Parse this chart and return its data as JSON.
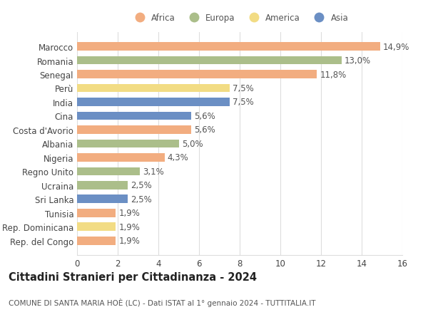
{
  "categories": [
    "Marocco",
    "Romania",
    "Senegal",
    "Perù",
    "India",
    "Cina",
    "Costa d'Avorio",
    "Albania",
    "Nigeria",
    "Regno Unito",
    "Ucraina",
    "Sri Lanka",
    "Tunisia",
    "Rep. Dominicana",
    "Rep. del Congo"
  ],
  "values": [
    14.9,
    13.0,
    11.8,
    7.5,
    7.5,
    5.6,
    5.6,
    5.0,
    4.3,
    3.1,
    2.5,
    2.5,
    1.9,
    1.9,
    1.9
  ],
  "labels": [
    "14,9%",
    "13,0%",
    "11,8%",
    "7,5%",
    "7,5%",
    "5,6%",
    "5,6%",
    "5,0%",
    "4,3%",
    "3,1%",
    "2,5%",
    "2,5%",
    "1,9%",
    "1,9%",
    "1,9%"
  ],
  "continents": [
    "Africa",
    "Europa",
    "Africa",
    "America",
    "Asia",
    "Asia",
    "Africa",
    "Europa",
    "Africa",
    "Europa",
    "Europa",
    "Asia",
    "Africa",
    "America",
    "Africa"
  ],
  "continent_colors": {
    "Africa": "#F2AD80",
    "Europa": "#ABBE8A",
    "America": "#F2DC84",
    "Asia": "#6B8FC4"
  },
  "legend_order": [
    "Africa",
    "Europa",
    "America",
    "Asia"
  ],
  "xlim": [
    0,
    16
  ],
  "xticks": [
    0,
    2,
    4,
    6,
    8,
    10,
    12,
    14,
    16
  ],
  "title": "Cittadini Stranieri per Cittadinanza - 2024",
  "subtitle": "COMUNE DI SANTA MARIA HOÈ (LC) - Dati ISTAT al 1° gennaio 2024 - TUTTITALIA.IT",
  "background_color": "#ffffff",
  "grid_color": "#dddddd",
  "bar_height": 0.6,
  "label_fontsize": 8.5,
  "tick_fontsize": 8.5,
  "title_fontsize": 10.5,
  "subtitle_fontsize": 7.5
}
